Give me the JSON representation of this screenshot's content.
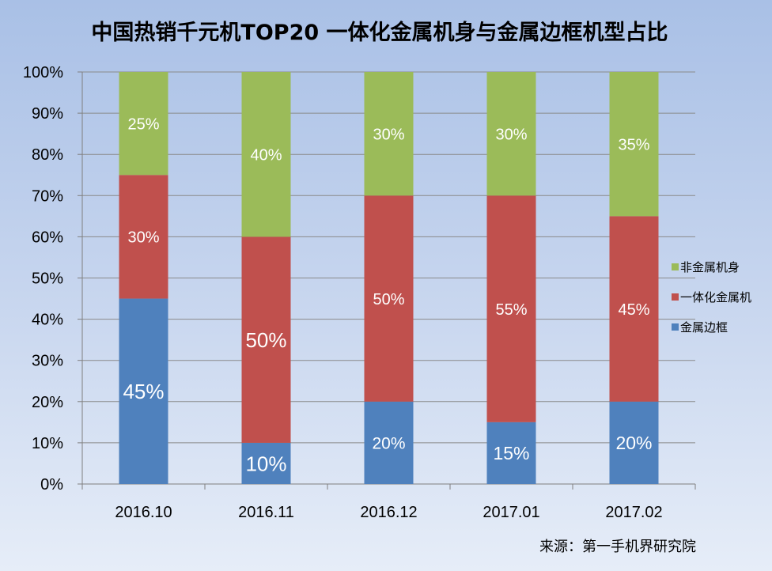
{
  "chart_data": {
    "type": "bar",
    "stacked": true,
    "title": "中国热销千元机TOP20 一体化金属机身与金属边框机型占比",
    "categories": [
      "2016.10",
      "2016.11",
      "2016.12",
      "2017.01",
      "2017.02"
    ],
    "series": [
      {
        "name": "金属边框",
        "color": "#4f81bd",
        "values": [
          45,
          10,
          20,
          15,
          20
        ],
        "labels": [
          "45%",
          "10%",
          "20%",
          "15%",
          "20%"
        ]
      },
      {
        "name": "一体化金属机",
        "color": "#c0504d",
        "values": [
          30,
          50,
          50,
          55,
          45
        ],
        "labels": [
          "30%",
          "50%",
          "50%",
          "55%",
          "45%"
        ]
      },
      {
        "name": "非金属机身",
        "color": "#9bbb59",
        "values": [
          25,
          40,
          30,
          30,
          35
        ],
        "labels": [
          "25%",
          "40%",
          "30%",
          "30%",
          "35%"
        ]
      }
    ],
    "ylim": [
      0,
      100
    ],
    "yticks": [
      "0%",
      "10%",
      "20%",
      "30%",
      "40%",
      "50%",
      "60%",
      "70%",
      "80%",
      "90%",
      "100%"
    ],
    "grid": true,
    "legend": "right",
    "source": "来源：第一手机界研究院"
  }
}
